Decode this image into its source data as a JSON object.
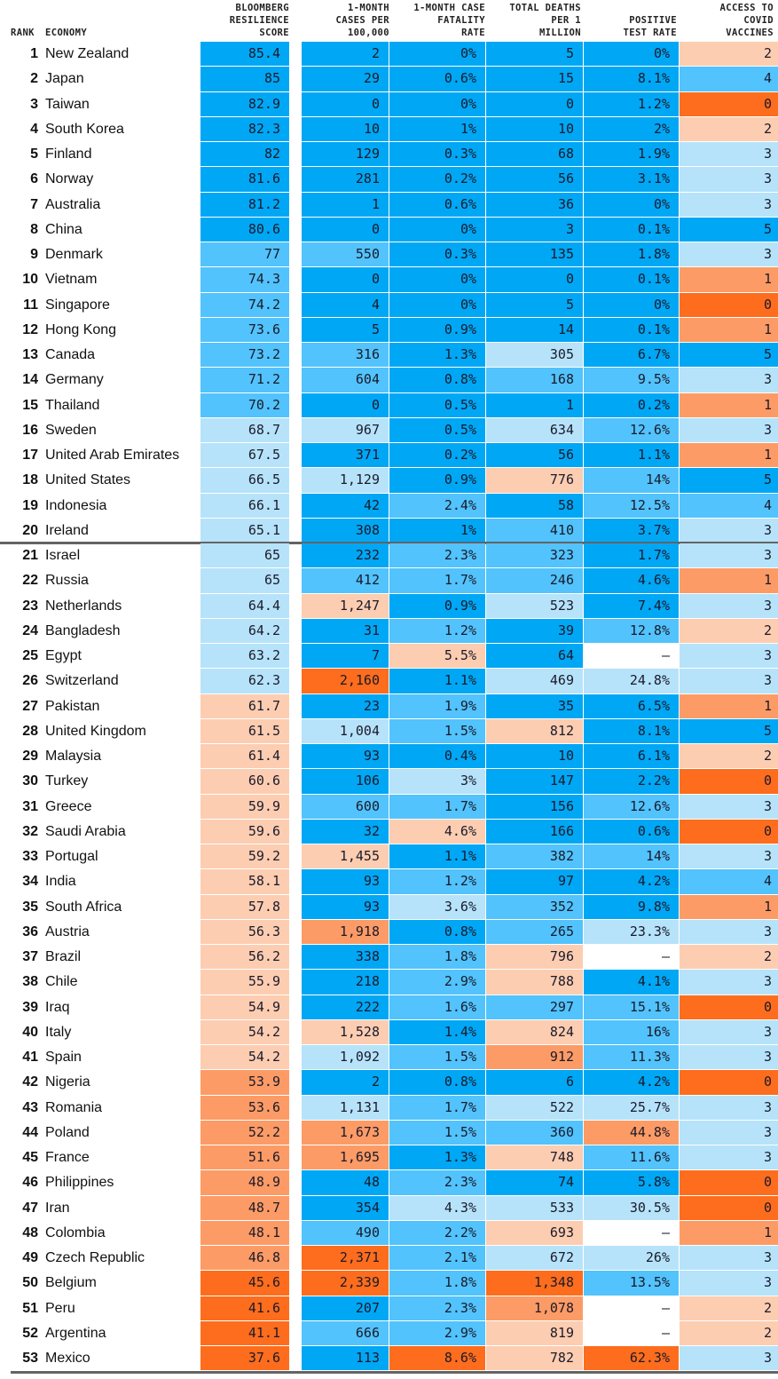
{
  "header": {
    "rank": "RANK",
    "economy": "ECONOMY",
    "score": "BLOOMBERG\nRESILIENCE\nSCORE",
    "cases": "1-MONTH\nCASES PER\n100,000",
    "fatality": "1-MONTH CASE\nFATALITY\nRATE",
    "deaths": "TOTAL DEATHS\nPER 1\nMILLION",
    "positive": "POSITIVE\nTEST RATE",
    "vaccines": "ACCESS TO\nCOVID\nVACCINES"
  },
  "colors": {
    "B3": "#00a7f5",
    "B2": "#52c3fc",
    "B1": "#b6e3fa",
    "O1": "#fdcdb1",
    "O2": "#fd9b66",
    "O3": "#fd6d1d",
    "N": "#ffffff",
    "divider": "#646464"
  },
  "divider_after_rank": 20,
  "rows": [
    {
      "rank": "1",
      "economy": "New Zealand",
      "score": "85.4",
      "cases": "2",
      "fatality": "0%",
      "deaths": "5",
      "positive": "0%",
      "vaccines": "2",
      "c": [
        "B3",
        "B3",
        "B3",
        "B3",
        "B3",
        "O1"
      ]
    },
    {
      "rank": "2",
      "economy": "Japan",
      "score": "85",
      "cases": "29",
      "fatality": "0.6%",
      "deaths": "15",
      "positive": "8.1%",
      "vaccines": "4",
      "c": [
        "B3",
        "B3",
        "B3",
        "B3",
        "B3",
        "B2"
      ]
    },
    {
      "rank": "3",
      "economy": "Taiwan",
      "score": "82.9",
      "cases": "0",
      "fatality": "0%",
      "deaths": "0",
      "positive": "1.2%",
      "vaccines": "0",
      "c": [
        "B3",
        "B3",
        "B3",
        "B3",
        "B3",
        "O3"
      ]
    },
    {
      "rank": "4",
      "economy": "South Korea",
      "score": "82.3",
      "cases": "10",
      "fatality": "1%",
      "deaths": "10",
      "positive": "2%",
      "vaccines": "2",
      "c": [
        "B3",
        "B3",
        "B3",
        "B3",
        "B3",
        "O1"
      ]
    },
    {
      "rank": "5",
      "economy": "Finland",
      "score": "82",
      "cases": "129",
      "fatality": "0.3%",
      "deaths": "68",
      "positive": "1.9%",
      "vaccines": "3",
      "c": [
        "B3",
        "B3",
        "B3",
        "B3",
        "B3",
        "B1"
      ]
    },
    {
      "rank": "6",
      "economy": "Norway",
      "score": "81.6",
      "cases": "281",
      "fatality": "0.2%",
      "deaths": "56",
      "positive": "3.1%",
      "vaccines": "3",
      "c": [
        "B3",
        "B3",
        "B3",
        "B3",
        "B3",
        "B1"
      ]
    },
    {
      "rank": "7",
      "economy": "Australia",
      "score": "81.2",
      "cases": "1",
      "fatality": "0.6%",
      "deaths": "36",
      "positive": "0%",
      "vaccines": "3",
      "c": [
        "B3",
        "B3",
        "B3",
        "B3",
        "B3",
        "B1"
      ]
    },
    {
      "rank": "8",
      "economy": "China",
      "score": "80.6",
      "cases": "0",
      "fatality": "0%",
      "deaths": "3",
      "positive": "0.1%",
      "vaccines": "5",
      "c": [
        "B3",
        "B3",
        "B3",
        "B3",
        "B3",
        "B3"
      ]
    },
    {
      "rank": "9",
      "economy": "Denmark",
      "score": "77",
      "cases": "550",
      "fatality": "0.3%",
      "deaths": "135",
      "positive": "1.8%",
      "vaccines": "3",
      "c": [
        "B2",
        "B2",
        "B3",
        "B3",
        "B3",
        "B1"
      ]
    },
    {
      "rank": "10",
      "economy": "Vietnam",
      "score": "74.3",
      "cases": "0",
      "fatality": "0%",
      "deaths": "0",
      "positive": "0.1%",
      "vaccines": "1",
      "c": [
        "B2",
        "B3",
        "B3",
        "B3",
        "B3",
        "O2"
      ]
    },
    {
      "rank": "11",
      "economy": "Singapore",
      "score": "74.2",
      "cases": "4",
      "fatality": "0%",
      "deaths": "5",
      "positive": "0%",
      "vaccines": "0",
      "c": [
        "B2",
        "B3",
        "B3",
        "B3",
        "B3",
        "O3"
      ]
    },
    {
      "rank": "12",
      "economy": "Hong Kong",
      "score": "73.6",
      "cases": "5",
      "fatality": "0.9%",
      "deaths": "14",
      "positive": "0.1%",
      "vaccines": "1",
      "c": [
        "B2",
        "B3",
        "B3",
        "B3",
        "B3",
        "O2"
      ]
    },
    {
      "rank": "13",
      "economy": "Canada",
      "score": "73.2",
      "cases": "316",
      "fatality": "1.3%",
      "deaths": "305",
      "positive": "6.7%",
      "vaccines": "5",
      "c": [
        "B2",
        "B2",
        "B3",
        "B1",
        "B3",
        "B3"
      ]
    },
    {
      "rank": "14",
      "economy": "Germany",
      "score": "71.2",
      "cases": "604",
      "fatality": "0.8%",
      "deaths": "168",
      "positive": "9.5%",
      "vaccines": "3",
      "c": [
        "B2",
        "B2",
        "B3",
        "B2",
        "B2",
        "B1"
      ]
    },
    {
      "rank": "15",
      "economy": "Thailand",
      "score": "70.2",
      "cases": "0",
      "fatality": "0.5%",
      "deaths": "1",
      "positive": "0.2%",
      "vaccines": "1",
      "c": [
        "B2",
        "B3",
        "B3",
        "B3",
        "B3",
        "O2"
      ]
    },
    {
      "rank": "16",
      "economy": "Sweden",
      "score": "68.7",
      "cases": "967",
      "fatality": "0.5%",
      "deaths": "634",
      "positive": "12.6%",
      "vaccines": "3",
      "c": [
        "B1",
        "B1",
        "B3",
        "B1",
        "B2",
        "B1"
      ]
    },
    {
      "rank": "17",
      "economy": "United Arab Emirates",
      "score": "67.5",
      "cases": "371",
      "fatality": "0.2%",
      "deaths": "56",
      "positive": "1.1%",
      "vaccines": "1",
      "c": [
        "B1",
        "B3",
        "B3",
        "B3",
        "B3",
        "O2"
      ]
    },
    {
      "rank": "18",
      "economy": "United States",
      "score": "66.5",
      "cases": "1,129",
      "fatality": "0.9%",
      "deaths": "776",
      "positive": "14%",
      "vaccines": "5",
      "c": [
        "B1",
        "B1",
        "B3",
        "O1",
        "B2",
        "B3"
      ]
    },
    {
      "rank": "19",
      "economy": "Indonesia",
      "score": "66.1",
      "cases": "42",
      "fatality": "2.4%",
      "deaths": "58",
      "positive": "12.5%",
      "vaccines": "4",
      "c": [
        "B1",
        "B3",
        "B2",
        "B3",
        "B2",
        "B2"
      ]
    },
    {
      "rank": "20",
      "economy": "Ireland",
      "score": "65.1",
      "cases": "308",
      "fatality": "1%",
      "deaths": "410",
      "positive": "3.7%",
      "vaccines": "3",
      "c": [
        "B1",
        "B3",
        "B3",
        "B2",
        "B3",
        "B1"
      ]
    },
    {
      "rank": "21",
      "economy": "Israel",
      "score": "65",
      "cases": "232",
      "fatality": "2.3%",
      "deaths": "323",
      "positive": "1.7%",
      "vaccines": "3",
      "c": [
        "B1",
        "B3",
        "B2",
        "B2",
        "B3",
        "B1"
      ]
    },
    {
      "rank": "22",
      "economy": "Russia",
      "score": "65",
      "cases": "412",
      "fatality": "1.7%",
      "deaths": "246",
      "positive": "4.6%",
      "vaccines": "1",
      "c": [
        "B1",
        "B2",
        "B2",
        "B2",
        "B3",
        "O2"
      ]
    },
    {
      "rank": "23",
      "economy": "Netherlands",
      "score": "64.4",
      "cases": "1,247",
      "fatality": "0.9%",
      "deaths": "523",
      "positive": "7.4%",
      "vaccines": "3",
      "c": [
        "B1",
        "O1",
        "B3",
        "B1",
        "B3",
        "B1"
      ]
    },
    {
      "rank": "24",
      "economy": "Bangladesh",
      "score": "64.2",
      "cases": "31",
      "fatality": "1.2%",
      "deaths": "39",
      "positive": "12.8%",
      "vaccines": "2",
      "c": [
        "B1",
        "B3",
        "B2",
        "B3",
        "B2",
        "O1"
      ]
    },
    {
      "rank": "25",
      "economy": "Egypt",
      "score": "63.2",
      "cases": "7",
      "fatality": "5.5%",
      "deaths": "64",
      "positive": "–",
      "vaccines": "3",
      "c": [
        "B1",
        "B3",
        "O1",
        "B3",
        "N",
        "B1"
      ]
    },
    {
      "rank": "26",
      "economy": "Switzerland",
      "score": "62.3",
      "cases": "2,160",
      "fatality": "1.1%",
      "deaths": "469",
      "positive": "24.8%",
      "vaccines": "3",
      "c": [
        "B1",
        "O3",
        "B3",
        "B1",
        "B1",
        "B1"
      ]
    },
    {
      "rank": "27",
      "economy": "Pakistan",
      "score": "61.7",
      "cases": "23",
      "fatality": "1.9%",
      "deaths": "35",
      "positive": "6.5%",
      "vaccines": "1",
      "c": [
        "O1",
        "B3",
        "B2",
        "B3",
        "B3",
        "O2"
      ]
    },
    {
      "rank": "28",
      "economy": "United Kingdom",
      "score": "61.5",
      "cases": "1,004",
      "fatality": "1.5%",
      "deaths": "812",
      "positive": "8.1%",
      "vaccines": "5",
      "c": [
        "O1",
        "B1",
        "B2",
        "O1",
        "B3",
        "B3"
      ]
    },
    {
      "rank": "29",
      "economy": "Malaysia",
      "score": "61.4",
      "cases": "93",
      "fatality": "0.4%",
      "deaths": "10",
      "positive": "6.1%",
      "vaccines": "2",
      "c": [
        "O1",
        "B3",
        "B3",
        "B3",
        "B3",
        "O1"
      ]
    },
    {
      "rank": "30",
      "economy": "Turkey",
      "score": "60.6",
      "cases": "106",
      "fatality": "3%",
      "deaths": "147",
      "positive": "2.2%",
      "vaccines": "0",
      "c": [
        "O1",
        "B3",
        "B1",
        "B3",
        "B3",
        "O3"
      ]
    },
    {
      "rank": "31",
      "economy": "Greece",
      "score": "59.9",
      "cases": "600",
      "fatality": "1.7%",
      "deaths": "156",
      "positive": "12.6%",
      "vaccines": "3",
      "c": [
        "O1",
        "B2",
        "B2",
        "B3",
        "B2",
        "B1"
      ]
    },
    {
      "rank": "32",
      "economy": "Saudi Arabia",
      "score": "59.6",
      "cases": "32",
      "fatality": "4.6%",
      "deaths": "166",
      "positive": "0.6%",
      "vaccines": "0",
      "c": [
        "O1",
        "B3",
        "O1",
        "B3",
        "B3",
        "O3"
      ]
    },
    {
      "rank": "33",
      "economy": "Portugal",
      "score": "59.2",
      "cases": "1,455",
      "fatality": "1.1%",
      "deaths": "382",
      "positive": "14%",
      "vaccines": "3",
      "c": [
        "O1",
        "O1",
        "B3",
        "B2",
        "B2",
        "B1"
      ]
    },
    {
      "rank": "34",
      "economy": "India",
      "score": "58.1",
      "cases": "93",
      "fatality": "1.2%",
      "deaths": "97",
      "positive": "4.2%",
      "vaccines": "4",
      "c": [
        "O1",
        "B3",
        "B2",
        "B3",
        "B3",
        "B2"
      ]
    },
    {
      "rank": "35",
      "economy": "South Africa",
      "score": "57.8",
      "cases": "93",
      "fatality": "3.6%",
      "deaths": "352",
      "positive": "9.8%",
      "vaccines": "1",
      "c": [
        "O1",
        "B3",
        "B1",
        "B2",
        "B3",
        "O2"
      ]
    },
    {
      "rank": "36",
      "economy": "Austria",
      "score": "56.3",
      "cases": "1,918",
      "fatality": "0.8%",
      "deaths": "265",
      "positive": "23.3%",
      "vaccines": "3",
      "c": [
        "O1",
        "O2",
        "B3",
        "B2",
        "B1",
        "B1"
      ]
    },
    {
      "rank": "37",
      "economy": "Brazil",
      "score": "56.2",
      "cases": "338",
      "fatality": "1.8%",
      "deaths": "796",
      "positive": "–",
      "vaccines": "2",
      "c": [
        "O1",
        "B3",
        "B2",
        "O1",
        "N",
        "O1"
      ]
    },
    {
      "rank": "38",
      "economy": "Chile",
      "score": "55.9",
      "cases": "218",
      "fatality": "2.9%",
      "deaths": "788",
      "positive": "4.1%",
      "vaccines": "3",
      "c": [
        "O1",
        "B3",
        "B2",
        "O1",
        "B3",
        "B1"
      ]
    },
    {
      "rank": "39",
      "economy": "Iraq",
      "score": "54.9",
      "cases": "222",
      "fatality": "1.6%",
      "deaths": "297",
      "positive": "15.1%",
      "vaccines": "0",
      "c": [
        "O1",
        "B3",
        "B2",
        "B2",
        "B2",
        "O3"
      ]
    },
    {
      "rank": "40",
      "economy": "Italy",
      "score": "54.2",
      "cases": "1,528",
      "fatality": "1.4%",
      "deaths": "824",
      "positive": "16%",
      "vaccines": "3",
      "c": [
        "O1",
        "O1",
        "B3",
        "O1",
        "B2",
        "B1"
      ]
    },
    {
      "rank": "41",
      "economy": "Spain",
      "score": "54.2",
      "cases": "1,092",
      "fatality": "1.5%",
      "deaths": "912",
      "positive": "11.3%",
      "vaccines": "3",
      "c": [
        "O1",
        "B1",
        "B2",
        "O2",
        "B2",
        "B1"
      ]
    },
    {
      "rank": "42",
      "economy": "Nigeria",
      "score": "53.9",
      "cases": "2",
      "fatality": "0.8%",
      "deaths": "6",
      "positive": "4.2%",
      "vaccines": "0",
      "c": [
        "O2",
        "B3",
        "B3",
        "B3",
        "B3",
        "O3"
      ]
    },
    {
      "rank": "43",
      "economy": "Romania",
      "score": "53.6",
      "cases": "1,131",
      "fatality": "1.7%",
      "deaths": "522",
      "positive": "25.7%",
      "vaccines": "3",
      "c": [
        "O2",
        "B1",
        "B2",
        "B1",
        "B1",
        "B1"
      ]
    },
    {
      "rank": "44",
      "economy": "Poland",
      "score": "52.2",
      "cases": "1,673",
      "fatality": "1.5%",
      "deaths": "360",
      "positive": "44.8%",
      "vaccines": "3",
      "c": [
        "O2",
        "O2",
        "B2",
        "B2",
        "O2",
        "B1"
      ]
    },
    {
      "rank": "45",
      "economy": "France",
      "score": "51.6",
      "cases": "1,695",
      "fatality": "1.3%",
      "deaths": "748",
      "positive": "11.6%",
      "vaccines": "3",
      "c": [
        "O2",
        "O2",
        "B3",
        "O1",
        "B2",
        "B1"
      ]
    },
    {
      "rank": "46",
      "economy": "Philippines",
      "score": "48.9",
      "cases": "48",
      "fatality": "2.3%",
      "deaths": "74",
      "positive": "5.8%",
      "vaccines": "0",
      "c": [
        "O2",
        "B3",
        "B2",
        "B3",
        "B3",
        "O3"
      ]
    },
    {
      "rank": "47",
      "economy": "Iran",
      "score": "48.7",
      "cases": "354",
      "fatality": "4.3%",
      "deaths": "533",
      "positive": "30.5%",
      "vaccines": "0",
      "c": [
        "O2",
        "B3",
        "B1",
        "B1",
        "B1",
        "O3"
      ]
    },
    {
      "rank": "48",
      "economy": "Colombia",
      "score": "48.1",
      "cases": "490",
      "fatality": "2.2%",
      "deaths": "693",
      "positive": "–",
      "vaccines": "1",
      "c": [
        "O2",
        "B2",
        "B2",
        "O1",
        "N",
        "O2"
      ]
    },
    {
      "rank": "49",
      "economy": "Czech Republic",
      "score": "46.8",
      "cases": "2,371",
      "fatality": "2.1%",
      "deaths": "672",
      "positive": "26%",
      "vaccines": "3",
      "c": [
        "O2",
        "O3",
        "B2",
        "B1",
        "B1",
        "B1"
      ]
    },
    {
      "rank": "50",
      "economy": "Belgium",
      "score": "45.6",
      "cases": "2,339",
      "fatality": "1.8%",
      "deaths": "1,348",
      "positive": "13.5%",
      "vaccines": "3",
      "c": [
        "O3",
        "O3",
        "B2",
        "O3",
        "B2",
        "B1"
      ]
    },
    {
      "rank": "51",
      "economy": "Peru",
      "score": "41.6",
      "cases": "207",
      "fatality": "2.3%",
      "deaths": "1,078",
      "positive": "–",
      "vaccines": "2",
      "c": [
        "O3",
        "B3",
        "B2",
        "O2",
        "N",
        "O1"
      ]
    },
    {
      "rank": "52",
      "economy": "Argentina",
      "score": "41.1",
      "cases": "666",
      "fatality": "2.9%",
      "deaths": "819",
      "positive": "–",
      "vaccines": "2",
      "c": [
        "O3",
        "B2",
        "B2",
        "O1",
        "N",
        "O1"
      ]
    },
    {
      "rank": "53",
      "economy": "Mexico",
      "score": "37.6",
      "cases": "113",
      "fatality": "8.6%",
      "deaths": "782",
      "positive": "62.3%",
      "vaccines": "3",
      "c": [
        "O3",
        "B3",
        "O3",
        "O1",
        "O3",
        "B1"
      ]
    }
  ]
}
